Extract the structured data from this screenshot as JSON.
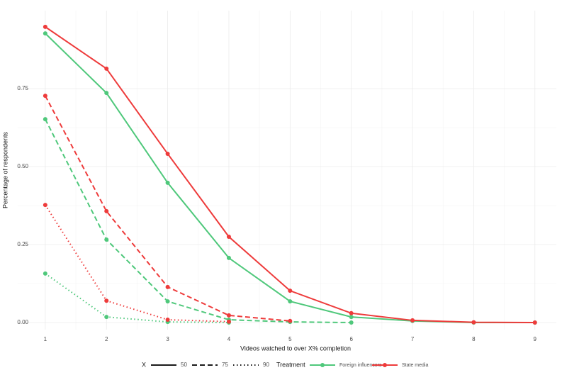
{
  "chart_data": {
    "type": "line",
    "x_label": "Videos watched to over X% completion",
    "y_label": "Percentage of respondents",
    "x": [
      1,
      2,
      3,
      4,
      5,
      6,
      7,
      8,
      9
    ],
    "xlim": [
      0.55,
      9.35
    ],
    "xticks": [
      1,
      2,
      3,
      4,
      5,
      6,
      7,
      8,
      9
    ],
    "ylim": [
      -0.0227,
      1.0
    ],
    "yticks": [
      {
        "value": 0,
        "label": "0.00"
      },
      {
        "value": 0.25,
        "label": "0.25"
      },
      {
        "value": 0.5,
        "label": "0.50"
      },
      {
        "value": 0.75,
        "label": "0.75"
      }
    ],
    "grid": true,
    "legend": {
      "position": "bottom",
      "linetype_title": "X",
      "linetypes": [
        {
          "label": "50",
          "dash": "solid"
        },
        {
          "label": "75",
          "dash": "dashed"
        },
        {
          "label": "90",
          "dash": "dotted"
        }
      ],
      "color_title": "Treatment",
      "colors": [
        {
          "label": "Foreign influencers",
          "color": "#4fc87b"
        },
        {
          "label": "State media",
          "color": "#ee3b3b"
        }
      ]
    },
    "series": [
      {
        "treatment": "Foreign influencers",
        "threshold": "50",
        "values": [
          0.927,
          0.736,
          0.448,
          0.207,
          0.068,
          0.018,
          0.005,
          0,
          0
        ]
      },
      {
        "treatment": "State media",
        "threshold": "50",
        "values": [
          0.948,
          0.814,
          0.541,
          0.275,
          0.102,
          0.03,
          0.007,
          0.001,
          0
        ]
      },
      {
        "treatment": "Foreign influencers",
        "threshold": "75",
        "values": [
          0.652,
          0.266,
          0.068,
          0.009,
          0.002,
          0,
          null,
          null,
          null
        ]
      },
      {
        "treatment": "State media",
        "threshold": "75",
        "values": [
          0.727,
          0.357,
          0.114,
          0.023,
          0.005,
          null,
          null,
          null,
          null
        ]
      },
      {
        "treatment": "Foreign influencers",
        "threshold": "90",
        "values": [
          0.157,
          0.018,
          0.002,
          0,
          null,
          null,
          null,
          null,
          null
        ]
      },
      {
        "treatment": "State media",
        "threshold": "90",
        "values": [
          0.377,
          0.07,
          0.009,
          0.003,
          null,
          null,
          null,
          null,
          null
        ]
      }
    ]
  }
}
